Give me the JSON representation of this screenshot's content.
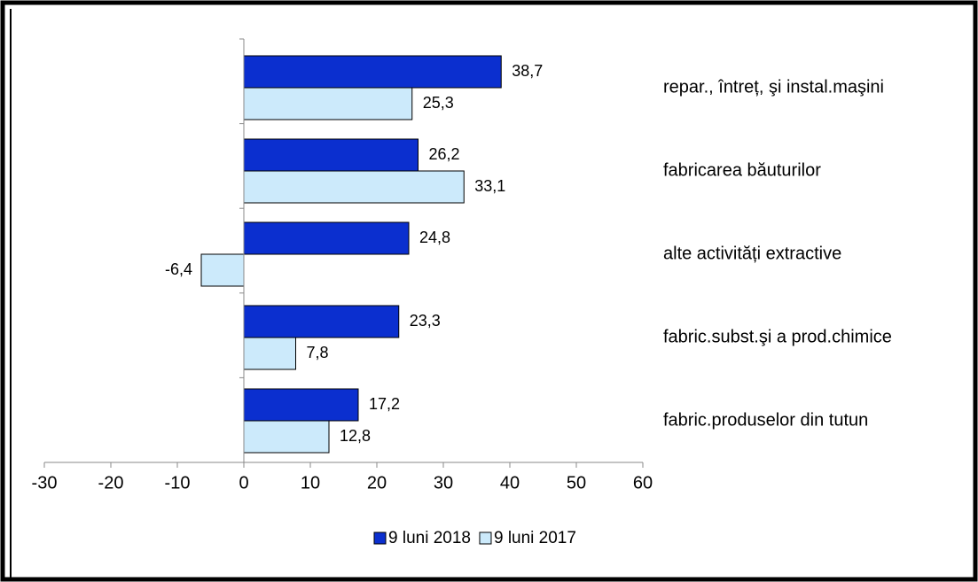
{
  "chart_data": {
    "type": "bar",
    "orientation": "horizontal",
    "categories": [
      "repar., întreț, şi instal.maşini",
      "fabricarea băuturilor",
      "alte activități extractive",
      "fabric.subst.şi a prod.chimice",
      "fabric.produselor din tutun"
    ],
    "series": [
      {
        "name": "9 luni 2018",
        "color": "#0b2fcf",
        "values": [
          38.7,
          26.2,
          24.8,
          23.3,
          17.2
        ],
        "value_labels": [
          "38,7",
          "26,2",
          "24,8",
          "23,3",
          "17,2"
        ]
      },
      {
        "name": "9 luni 2017",
        "color": "#cceafb",
        "values": [
          25.3,
          33.1,
          -6.4,
          7.8,
          12.8
        ],
        "value_labels": [
          "25,3",
          "33,1",
          "-6,4",
          "7,8",
          "12,8"
        ]
      }
    ],
    "xlim": [
      -30,
      60
    ],
    "xticks": [
      -30,
      -20,
      -10,
      0,
      10,
      20,
      30,
      40,
      50,
      60
    ],
    "legend": "bottom",
    "grid": false
  }
}
